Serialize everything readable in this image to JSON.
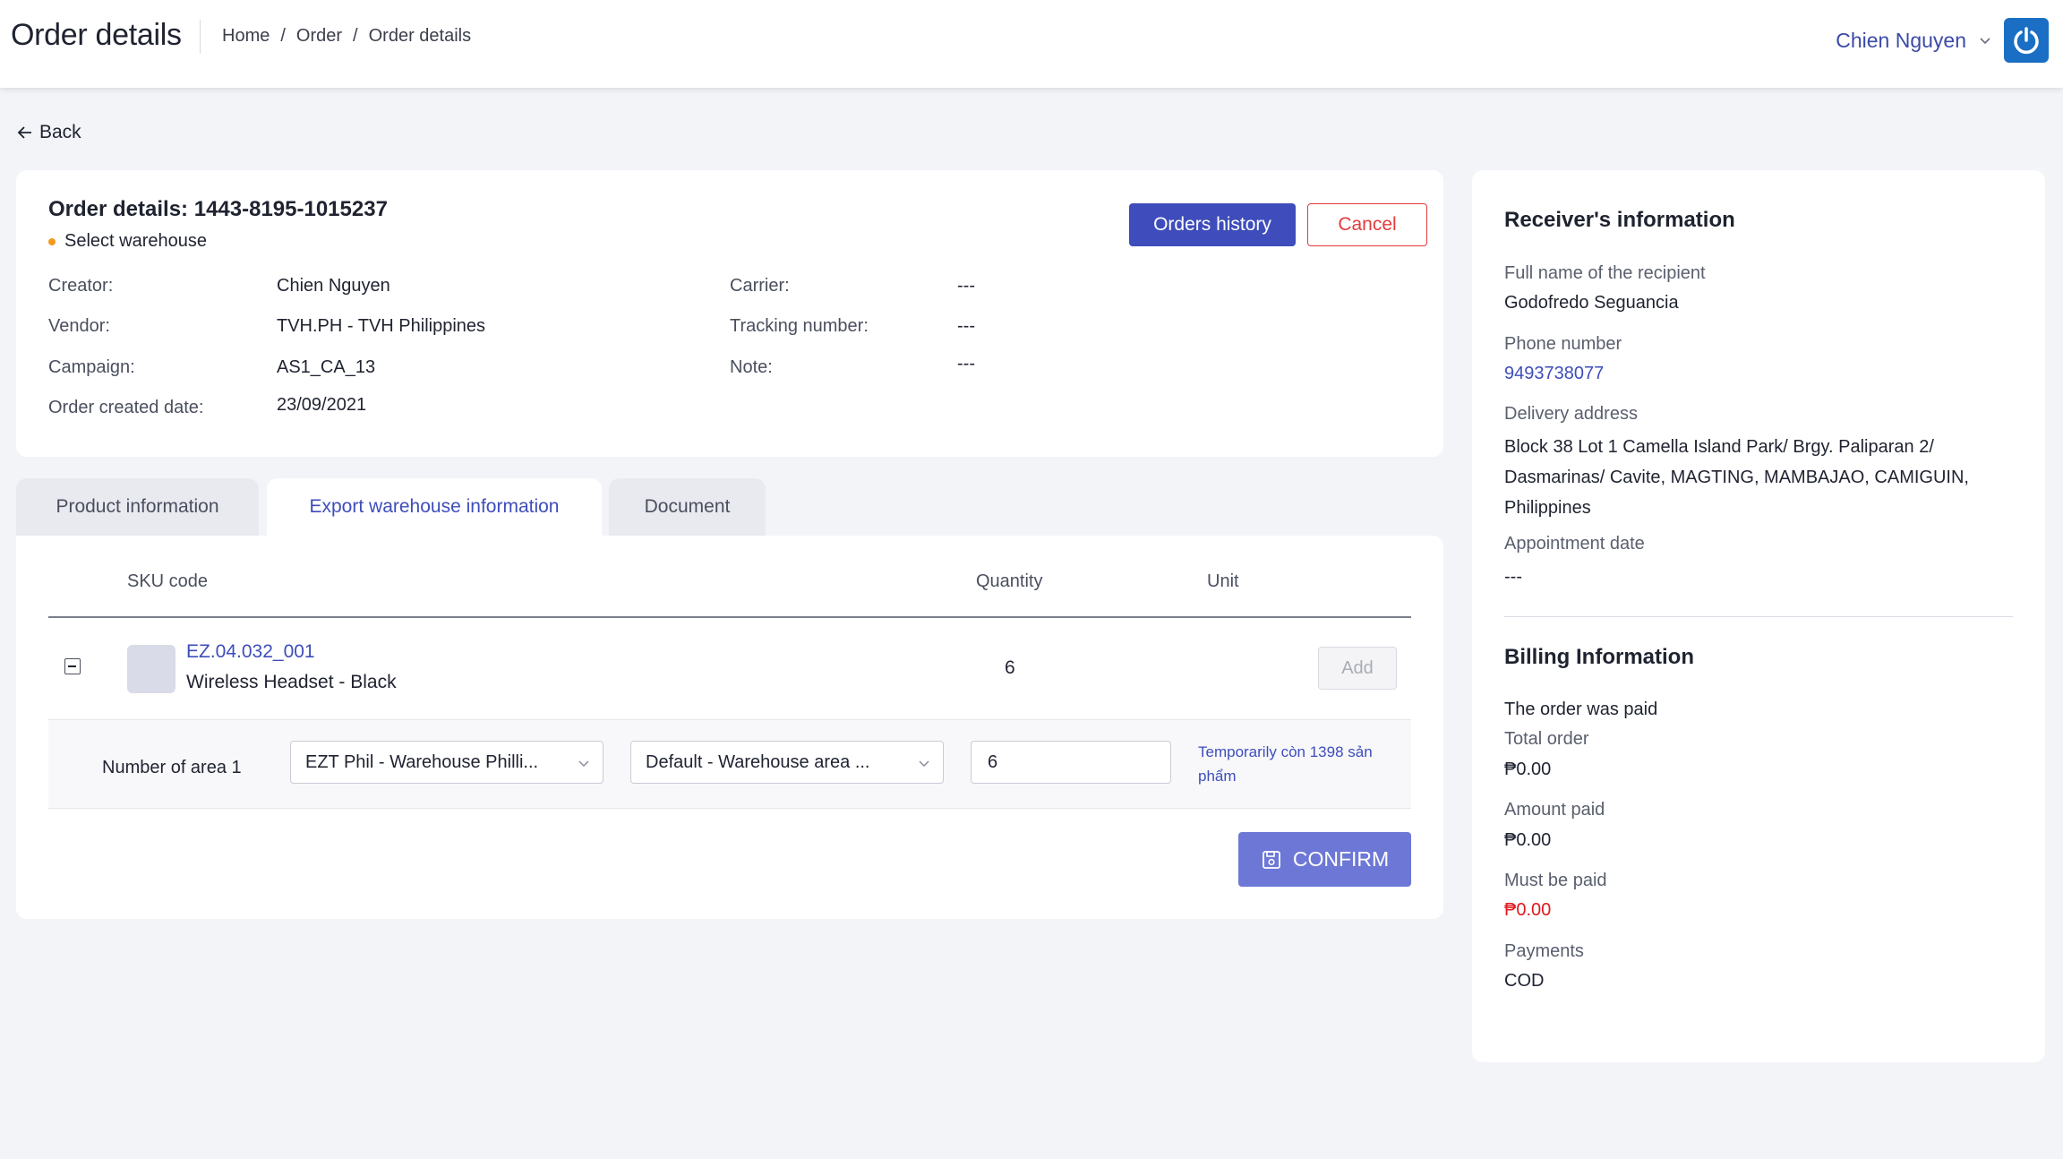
{
  "header": {
    "title": "Order details",
    "breadcrumb": [
      "Home",
      "Order",
      "Order details"
    ],
    "breadcrumb_sep": "/",
    "user_name": "Chien Nguyen"
  },
  "back_label": "Back",
  "order": {
    "title": "Order details: 1443-8195-1015237",
    "status": "Select warehouse",
    "orders_history_label": "Orders history",
    "cancel_label": "Cancel",
    "meta": {
      "creator_label": "Creator:",
      "creator": "Chien Nguyen",
      "vendor_label": "Vendor:",
      "vendor": "TVH.PH - TVH Philippines",
      "campaign_label": "Campaign:",
      "campaign": "AS1_CA_13",
      "created_label": "Order created date:",
      "created": "23/09/2021",
      "carrier_label": "Carrier:",
      "carrier": "---",
      "tracking_label": "Tracking number:",
      "tracking": "---",
      "note_label": "Note:",
      "note": "---"
    }
  },
  "tabs": [
    {
      "label": "Product information",
      "active": false
    },
    {
      "label": "Export warehouse information",
      "active": true
    },
    {
      "label": "Document",
      "active": false
    }
  ],
  "export": {
    "columns": {
      "sku": "SKU code",
      "quantity": "Quantity",
      "unit": "Unit"
    },
    "row": {
      "sku": "EZ.04.032_001",
      "name": "Wireless Headset - Black",
      "quantity": "6",
      "add_label": "Add"
    },
    "area": {
      "label": "Number of area 1",
      "warehouse": "EZT Phil - Warehouse Philli...",
      "area": "Default - Warehouse area ...",
      "quantity": "6",
      "stock_note": "Temporarily còn 1398 sản phẩm"
    },
    "confirm_label": "CONFIRM"
  },
  "receiver": {
    "title": "Receiver's information",
    "name_label": "Full name of the recipient",
    "name": "Godofredo Seguancia",
    "phone_label": "Phone number",
    "phone": "9493738077",
    "address_label": "Delivery address",
    "address": "Block 38 Lot 1 Camella Island Park/ Brgy. Paliparan 2/ Dasmarinas/ Cavite, MAGTING, MAMBAJAO, CAMIGUIN, Philippines",
    "appointment_label": "Appointment date",
    "appointment": "---"
  },
  "billing": {
    "title": "Billing Information",
    "status": "The order was paid",
    "total_label": "Total order",
    "total": "₱0.00",
    "paid_label": "Amount paid",
    "paid": "₱0.00",
    "due_label": "Must be paid",
    "due": "₱0.00",
    "payments_label": "Payments",
    "payments": "COD"
  },
  "colors": {
    "primary": "#3e4dbb",
    "confirm": "#6d78d6",
    "danger": "#e23b3b",
    "status_dot": "#f39a1c",
    "background": "#f3f4f8"
  }
}
